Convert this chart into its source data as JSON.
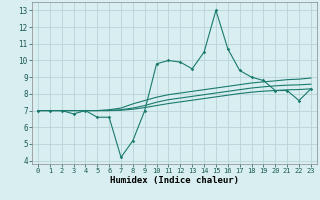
{
  "title": "",
  "xlabel": "Humidex (Indice chaleur)",
  "ylabel": "",
  "xlim": [
    -0.5,
    23.5
  ],
  "ylim": [
    3.8,
    13.5
  ],
  "yticks": [
    4,
    5,
    6,
    7,
    8,
    9,
    10,
    11,
    12,
    13
  ],
  "xticks": [
    0,
    1,
    2,
    3,
    4,
    5,
    6,
    7,
    8,
    9,
    10,
    11,
    12,
    13,
    14,
    15,
    16,
    17,
    18,
    19,
    20,
    21,
    22,
    23
  ],
  "bg_color": "#d8eef0",
  "grid_color": "#b8d4d6",
  "line_color": "#1a7a6e",
  "x": [
    0,
    1,
    2,
    3,
    4,
    5,
    6,
    7,
    8,
    9,
    10,
    11,
    12,
    13,
    14,
    15,
    16,
    17,
    18,
    19,
    20,
    21,
    22,
    23
  ],
  "y_main": [
    7.0,
    7.0,
    7.0,
    6.8,
    7.0,
    6.6,
    6.6,
    4.2,
    5.2,
    7.0,
    9.8,
    10.0,
    9.9,
    9.5,
    10.5,
    13.0,
    10.7,
    9.4,
    9.0,
    8.8,
    8.2,
    8.2,
    7.6,
    8.3
  ],
  "y_line2": [
    7.0,
    7.0,
    7.0,
    7.0,
    7.0,
    7.0,
    7.05,
    7.15,
    7.4,
    7.6,
    7.8,
    7.95,
    8.05,
    8.15,
    8.25,
    8.35,
    8.45,
    8.55,
    8.65,
    8.72,
    8.78,
    8.85,
    8.88,
    8.95
  ],
  "y_line3": [
    7.0,
    7.0,
    7.0,
    7.0,
    7.0,
    7.0,
    7.0,
    7.05,
    7.15,
    7.3,
    7.5,
    7.65,
    7.75,
    7.85,
    7.95,
    8.05,
    8.15,
    8.25,
    8.35,
    8.42,
    8.48,
    8.52,
    8.54,
    8.58
  ],
  "y_line4": [
    7.0,
    7.0,
    7.0,
    7.0,
    7.0,
    7.0,
    7.0,
    7.02,
    7.08,
    7.18,
    7.3,
    7.42,
    7.52,
    7.62,
    7.72,
    7.82,
    7.92,
    8.02,
    8.1,
    8.16,
    8.2,
    8.24,
    8.26,
    8.3
  ]
}
